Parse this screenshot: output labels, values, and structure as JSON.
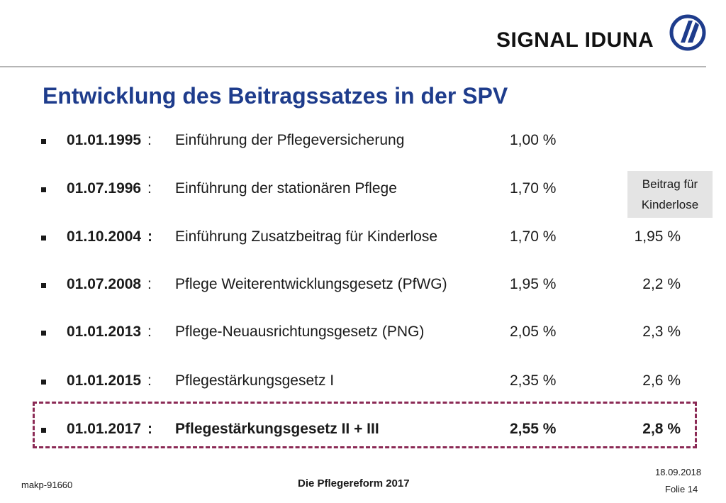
{
  "header": {
    "brand_name": "SIGNAL IDUNA",
    "brand_color": "#1e3c8c",
    "logo_icon": "signal-iduna-logo"
  },
  "title": "Entwicklung des Beitragssatzes in der SPV",
  "kinderlose_header": {
    "line1": "Beitrag für",
    "line2": "Kinderlose"
  },
  "rows": [
    {
      "date": "01.01.1995",
      "colon": ":",
      "description": "Einführung der Pflegeversicherung",
      "rate": "1,00 %",
      "rate_kinderlose": ""
    },
    {
      "date": "01.07.1996",
      "colon": ":",
      "description": "Einführung der stationären Pflege",
      "rate": "1,70 %",
      "rate_kinderlose": ""
    },
    {
      "date": "01.10.2004",
      "colon": ":",
      "description": "Einführung Zusatzbeitrag für Kinderlose",
      "rate": "1,70 %",
      "rate_kinderlose": "1,95 %"
    },
    {
      "date": "01.07.2008",
      "colon": ":",
      "description": "Pflege Weiterentwicklungsgesetz (PfWG)",
      "rate": "1,95 %",
      "rate_kinderlose": "2,2 %"
    },
    {
      "date": "01.01.2013",
      "colon": ":",
      "description": "Pflege-Neuausrichtungsgesetz (PNG)",
      "rate": "2,05 %",
      "rate_kinderlose": "2,3 %"
    },
    {
      "date": "01.01.2015",
      "colon": ":",
      "description": "Pflegestärkungsgesetz I",
      "rate": "2,35 %",
      "rate_kinderlose": "2,6 %"
    },
    {
      "date": "01.01.2017",
      "colon": ":",
      "description": "Pflegestärkungsgesetz II + III",
      "rate": "2,55 %",
      "rate_kinderlose": "2,8 %"
    }
  ],
  "highlight_color": "#8b2a55",
  "footer": {
    "doc_id": "makp-91660",
    "presentation_title": "Die Pflegereform 2017",
    "date": "18.09.2018",
    "slide_number": "Folie 14"
  }
}
